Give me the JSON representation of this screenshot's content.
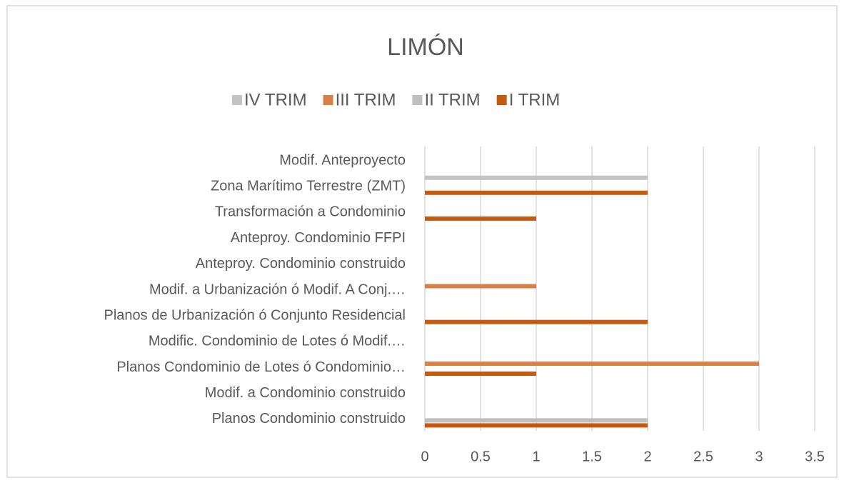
{
  "chart_data": {
    "type": "bar",
    "orientation": "horizontal",
    "title": "LIMÓN",
    "categories": [
      "Planos Condominio construido",
      "Modif. a Condominio construido",
      "Planos Condominio de Lotes ó Condominio…",
      "Modific. Condominio de Lotes ó Modif.…",
      "Planos de Urbanización ó Conjunto Residencial",
      "Modif. a Urbanización ó Modif. A Conj.…",
      "Anteproy. Condominio construido",
      "Anteproy. Condominio FFPI",
      "Transformación a Condominio",
      "Zona Marítimo Terrestre (ZMT)",
      "Modif. Anteproyecto"
    ],
    "series": [
      {
        "name": "I TRIM",
        "color": "#c55a11",
        "values": [
          2,
          null,
          1,
          null,
          2,
          null,
          null,
          null,
          1,
          2,
          null
        ]
      },
      {
        "name": "II TRIM",
        "color": "#bfbfbf",
        "values": [
          2,
          null,
          null,
          null,
          null,
          null,
          null,
          null,
          null,
          null,
          null
        ]
      },
      {
        "name": "III TRIM",
        "color": "#d98046",
        "values": [
          null,
          null,
          3,
          null,
          null,
          1,
          null,
          null,
          null,
          null,
          null
        ]
      },
      {
        "name": "IV TRIM",
        "color": "#c3c3c3",
        "values": [
          null,
          null,
          null,
          null,
          null,
          null,
          null,
          null,
          null,
          2,
          null
        ]
      }
    ],
    "xlim": [
      0,
      3.5
    ],
    "xticks": [
      0,
      0.5,
      1,
      1.5,
      2,
      2.5,
      3,
      3.5
    ],
    "grid": true,
    "legend": "top"
  }
}
